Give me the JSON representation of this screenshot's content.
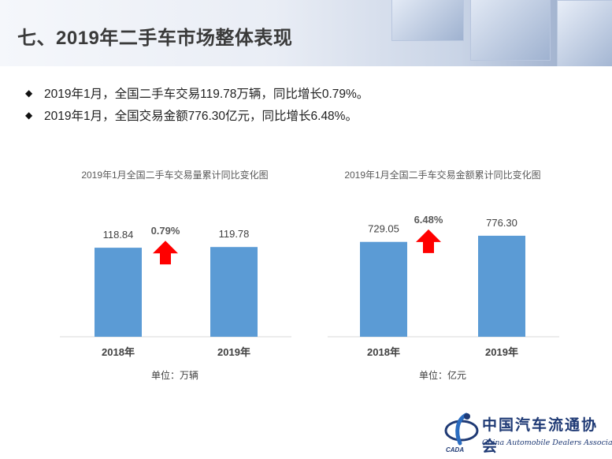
{
  "header": {
    "title": "七、2019年二手车市场整体表现"
  },
  "bullets": [
    "2019年1月，全国二手车交易119.78万辆，同比增长0.79%。",
    "2019年1月，全国交易金额776.30亿元，同比增长6.48%。"
  ],
  "colors": {
    "bar": "#5b9bd5",
    "arrow": "#ff0000",
    "title_text": "#3a3a3a"
  },
  "chart_data": [
    {
      "type": "bar",
      "title": "2019年1月全国二手车交易量累计同比变化图",
      "categories": [
        "2018年",
        "2019年"
      ],
      "values": [
        118.84,
        119.78
      ],
      "value_labels": [
        "118.84",
        "119.78"
      ],
      "change_label": "0.79%",
      "unit": "单位：万辆",
      "grid": false
    },
    {
      "type": "bar",
      "title": "2019年1月全国二手车交易金额累计同比变化图",
      "categories": [
        "2018年",
        "2019年"
      ],
      "values": [
        729.05,
        776.3
      ],
      "value_labels": [
        "729.05",
        "776.30"
      ],
      "change_label": "6.48%",
      "unit": "单位：亿元",
      "grid": false
    }
  ],
  "logo": {
    "name_cn": "中国汽车流通协会",
    "name_en": "China Automobile Dealers Association",
    "abbr": "CADA"
  }
}
